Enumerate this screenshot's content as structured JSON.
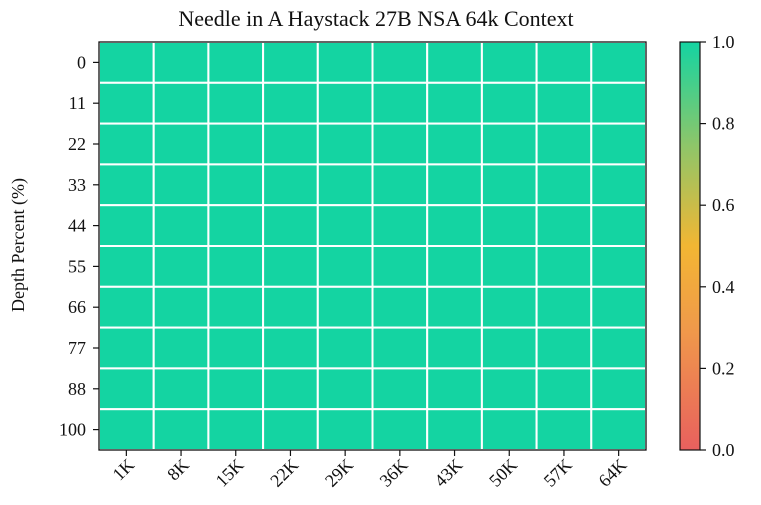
{
  "chart_data": {
    "type": "heatmap",
    "title": "Needle in A Haystack 27B NSA 64k Context",
    "ylabel": "Depth Percent (%)",
    "xlabel": "",
    "x_categories": [
      "1K",
      "8K",
      "15K",
      "22K",
      "29K",
      "36K",
      "43K",
      "50K",
      "57K",
      "64K"
    ],
    "y_categories": [
      "0",
      "11",
      "22",
      "33",
      "44",
      "55",
      "66",
      "77",
      "88",
      "100"
    ],
    "values": [
      [
        1,
        1,
        1,
        1,
        1,
        1,
        1,
        1,
        1,
        1
      ],
      [
        1,
        1,
        1,
        1,
        1,
        1,
        1,
        1,
        1,
        1
      ],
      [
        1,
        1,
        1,
        1,
        1,
        1,
        1,
        1,
        1,
        1
      ],
      [
        1,
        1,
        1,
        1,
        1,
        1,
        1,
        1,
        1,
        1
      ],
      [
        1,
        1,
        1,
        1,
        1,
        1,
        1,
        1,
        1,
        1
      ],
      [
        1,
        1,
        1,
        1,
        1,
        1,
        1,
        1,
        1,
        1
      ],
      [
        1,
        1,
        1,
        1,
        1,
        1,
        1,
        1,
        1,
        1
      ],
      [
        1,
        1,
        1,
        1,
        1,
        1,
        1,
        1,
        1,
        1
      ],
      [
        1,
        1,
        1,
        1,
        1,
        1,
        1,
        1,
        1,
        1
      ],
      [
        1,
        1,
        1,
        1,
        1,
        1,
        1,
        1,
        1,
        1
      ]
    ],
    "colorbar": {
      "range": [
        0.0,
        1.0
      ],
      "ticks": [
        "0.0",
        "0.2",
        "0.4",
        "0.6",
        "0.8",
        "1.0"
      ],
      "colors": [
        "#e8605e",
        "#f09a4a",
        "#f2b633",
        "#8cc66a",
        "#14d4a2"
      ]
    },
    "grid": true
  }
}
